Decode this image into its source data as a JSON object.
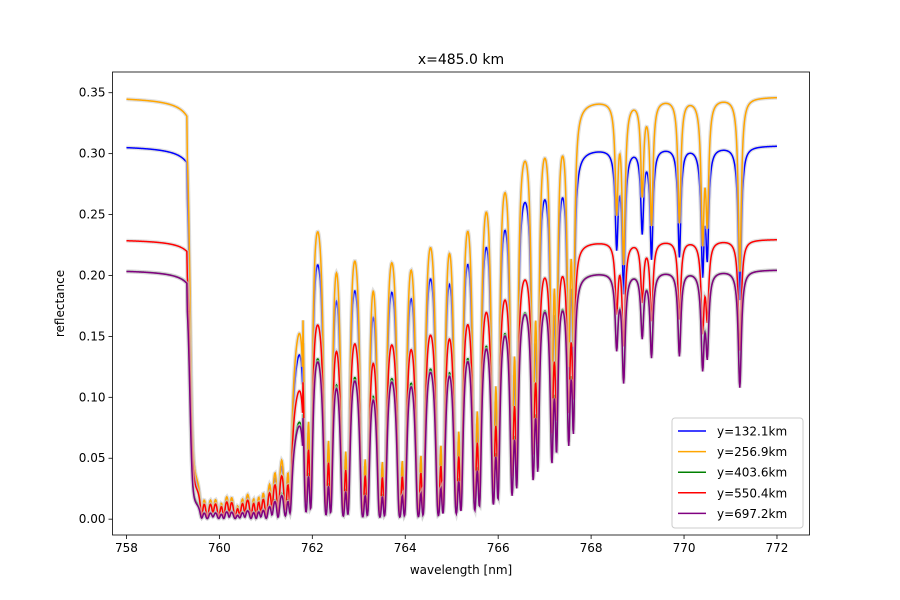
{
  "chart_data": {
    "type": "line",
    "title": "x=485.0 km",
    "xlabel": "wavelength [nm]",
    "ylabel": "reflectance",
    "xlim": [
      757.7,
      772.7
    ],
    "ylim": [
      -0.013,
      0.367
    ],
    "xticks": [
      "758",
      "760",
      "762",
      "764",
      "766",
      "768",
      "770",
      "772"
    ],
    "yticks": [
      "0.00",
      "0.05",
      "0.10",
      "0.15",
      "0.20",
      "0.25",
      "0.30",
      "0.35"
    ],
    "grid": false,
    "legend_position": "lower-right",
    "x_range": [
      758,
      772
    ],
    "band_start_nm": 759.4,
    "series": [
      {
        "name": "y=132.1km",
        "color": "#0000ff",
        "continuum": 0.307
      },
      {
        "name": "y=256.9km",
        "color": "#ffa500",
        "continuum": 0.347
      },
      {
        "name": "y=403.6km",
        "color": "#008000",
        "continuum": 0.205
      },
      {
        "name": "y=550.4km",
        "color": "#ff0000",
        "continuum": 0.23
      },
      {
        "name": "y=697.2km",
        "color": "#800080",
        "continuum": 0.205
      }
    ]
  }
}
